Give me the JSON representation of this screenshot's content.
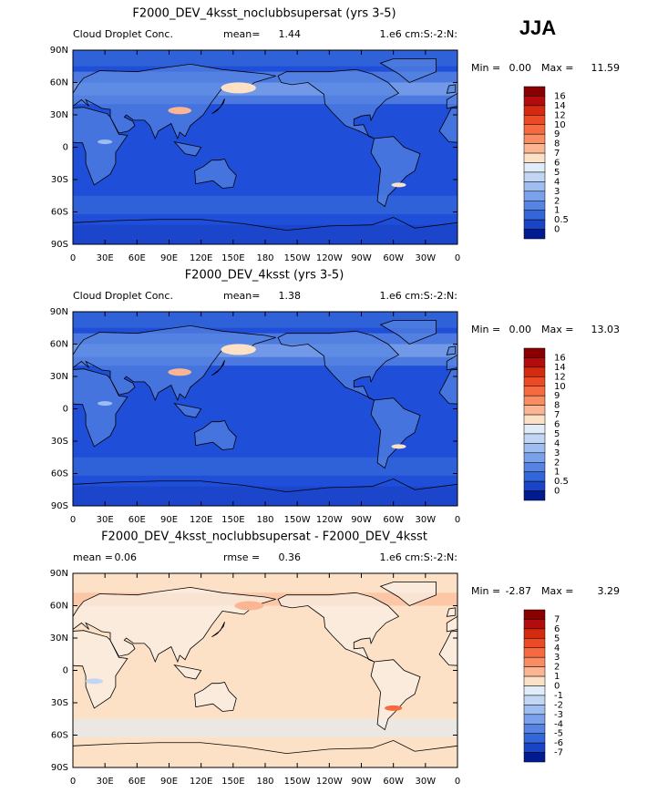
{
  "season": "JJA",
  "x_labels": [
    "0",
    "30E",
    "60E",
    "90E",
    "120E",
    "150E",
    "180",
    "150W",
    "120W",
    "90W",
    "60W",
    "30W",
    "0"
  ],
  "y_labels": [
    "90N",
    "60N",
    "30N",
    "0",
    "30S",
    "60S",
    "90S"
  ],
  "panels": [
    {
      "title": "F2000_DEV_4ksst_noclubbsupersat (yrs 3-5)",
      "left": "Cloud Droplet Conc.",
      "center_label": "mean=",
      "center_value": "1.44",
      "right": "1.e6 cm:S:-2:N:",
      "min_label": "Min =",
      "min": "0.00",
      "max_label": "Max =",
      "max": "11.59",
      "map": "field",
      "colorbar": {
        "labels": [
          "16",
          "14",
          "12",
          "10",
          "9",
          "8",
          "7",
          "6",
          "5",
          "4",
          "3",
          "2",
          "1",
          "0.5",
          "0"
        ],
        "colors": [
          "#8a0000",
          "#b40c0c",
          "#d42a10",
          "#ec4a24",
          "#f56a40",
          "#f88d64",
          "#fbb593",
          "#fde1c6",
          "#e0ecf8",
          "#c2d6f4",
          "#9fbdf0",
          "#7ba1ea",
          "#5784e2",
          "#3366d8",
          "#1a44c8",
          "#001a90"
        ]
      }
    },
    {
      "title": "F2000_DEV_4ksst (yrs 3-5)",
      "left": "Cloud Droplet Conc.",
      "center_label": "mean=",
      "center_value": "1.38",
      "right": "1.e6 cm:S:-2:N:",
      "min_label": "Min =",
      "min": "0.00",
      "max_label": "Max =",
      "max": "13.03",
      "map": "field",
      "colorbar": {
        "labels": [
          "16",
          "14",
          "12",
          "10",
          "9",
          "8",
          "7",
          "6",
          "5",
          "4",
          "3",
          "2",
          "1",
          "0.5",
          "0"
        ],
        "colors": [
          "#8a0000",
          "#b40c0c",
          "#d42a10",
          "#ec4a24",
          "#f56a40",
          "#f88d64",
          "#fbb593",
          "#fde1c6",
          "#e0ecf8",
          "#c2d6f4",
          "#9fbdf0",
          "#7ba1ea",
          "#5784e2",
          "#3366d8",
          "#1a44c8",
          "#001a90"
        ]
      }
    },
    {
      "title": "F2000_DEV_4ksst_noclubbsupersat - F2000_DEV_4ksst",
      "left": "mean =",
      "left_value": "0.06",
      "center_label": "rmse =",
      "center_value": "0.36",
      "right": "1.e6 cm:S:-2:N:",
      "min_label": "Min =",
      "min": "-2.87",
      "max_label": "Max =",
      "max": "3.29",
      "map": "diff",
      "colorbar": {
        "labels": [
          "7",
          "6",
          "5",
          "4",
          "3",
          "2",
          "1",
          "0",
          "-1",
          "-2",
          "-3",
          "-4",
          "-5",
          "-6",
          "-7"
        ],
        "colors": [
          "#8a0000",
          "#b40c0c",
          "#d42a10",
          "#ec4a24",
          "#f56a40",
          "#f88d64",
          "#fbb593",
          "#fde1c6",
          "#e0ecf8",
          "#c2d6f4",
          "#9fbdf0",
          "#7ba1ea",
          "#5784e2",
          "#3366d8",
          "#1a44c8",
          "#001a90"
        ]
      }
    }
  ]
}
